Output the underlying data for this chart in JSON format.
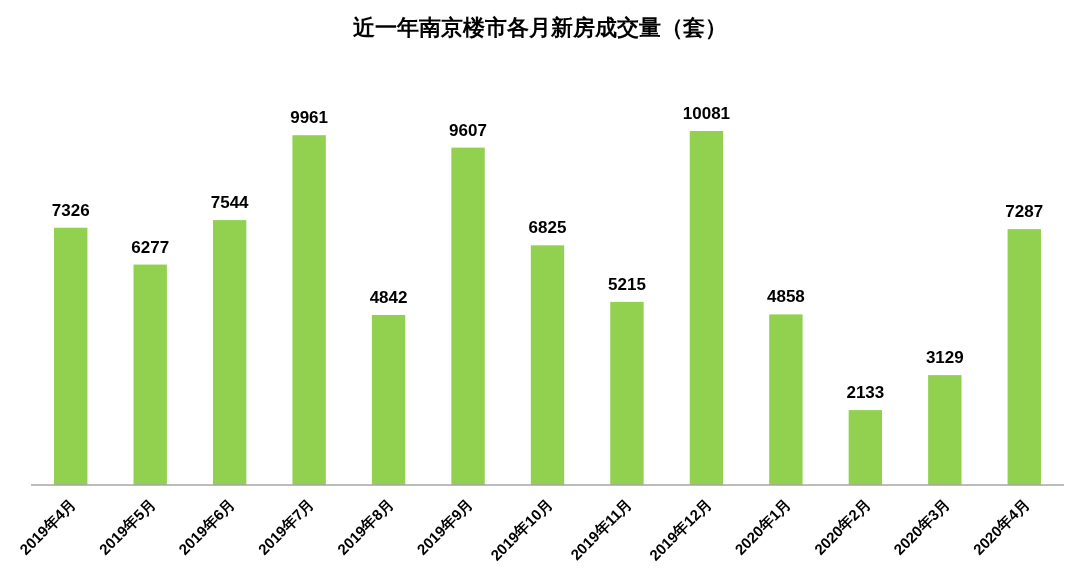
{
  "chart_data": {
    "type": "bar",
    "title": "近一年南京楼市各月新房成交量（套）",
    "categories": [
      "2019年4月",
      "2019年5月",
      "2019年6月",
      "2019年7月",
      "2019年8月",
      "2019年9月",
      "2019年10月",
      "2019年11月",
      "2019年12月",
      "2020年1月",
      "2020年2月",
      "2020年3月",
      "2020年4月"
    ],
    "values": [
      7326,
      6277,
      7544,
      9961,
      4842,
      9607,
      6825,
      5215,
      10081,
      4858,
      2133,
      3129,
      7287
    ],
    "color": "#92d050",
    "data_labels": true
  }
}
